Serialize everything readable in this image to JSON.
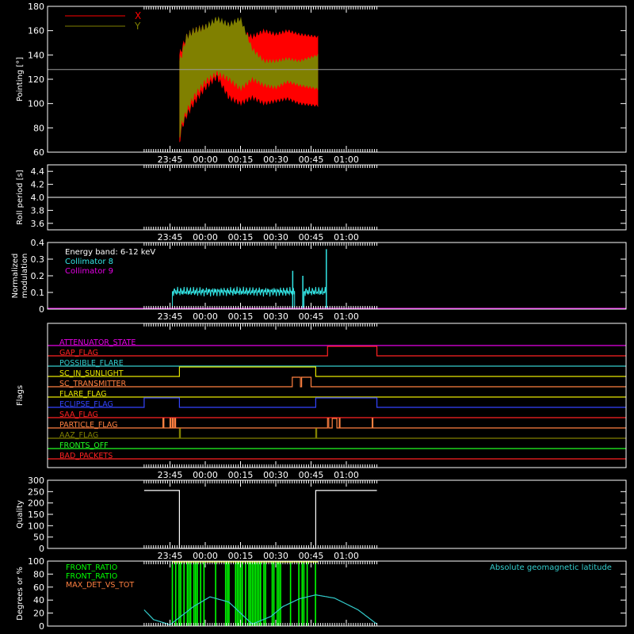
{
  "time_ticks": [
    "23:45",
    "00:00",
    "00:15",
    "00:30",
    "00:45",
    "01:00"
  ],
  "colors": {
    "frame": "#ffffff",
    "x": "#ff0000",
    "y": "#808000",
    "mod": "#33e6e6",
    "col9": "#e600e6",
    "mag": "#33cccc",
    "green": "#00ff00",
    "orange": "#ff8040"
  },
  "chart_data": [
    {
      "type": "area",
      "ylabel": "Pointing [°]",
      "ylim": [
        60,
        180
      ],
      "yticks": [
        "60",
        "80",
        "100",
        "120",
        "140",
        "160",
        "180"
      ],
      "reference_line": 128,
      "legend": [
        "X",
        "Y"
      ],
      "series": [
        {
          "name": "X",
          "x_minutes": [
            -11,
            -10,
            -8,
            -5,
            0,
            5,
            10,
            15,
            20,
            25,
            30,
            35,
            40,
            48
          ],
          "upper": [
            140,
            145,
            155,
            160,
            163,
            165,
            165,
            160,
            155,
            160,
            157,
            160,
            157,
            155
          ],
          "lower": [
            68,
            80,
            90,
            100,
            113,
            122,
            105,
            100,
            105,
            100,
            102,
            104,
            100,
            98
          ]
        },
        {
          "name": "Y",
          "x_minutes": [
            -11,
            -10,
            -8,
            -5,
            0,
            5,
            10,
            15,
            20,
            25,
            30,
            35,
            40,
            48
          ],
          "upper": [
            135,
            140,
            155,
            160,
            163,
            170,
            165,
            170,
            145,
            135,
            135,
            137,
            135,
            140
          ],
          "lower": [
            72,
            83,
            93,
            105,
            118,
            125,
            120,
            112,
            120,
            115,
            113,
            118,
            115,
            112
          ]
        }
      ]
    },
    {
      "type": "line",
      "ylabel": "Roll period [s]",
      "ylim": [
        3.5,
        4.5
      ],
      "yticks": [
        "3.6",
        "3.8",
        "4.0",
        "4.2",
        "4.4"
      ],
      "series": [
        {
          "name": "",
          "value": 4.0
        }
      ]
    },
    {
      "type": "line",
      "ylabel": [
        "Normalized",
        "modulation"
      ],
      "ylim": [
        0,
        0.4
      ],
      "yticks": [
        "0",
        "0.1",
        "0.2",
        "0.3",
        "0.4"
      ],
      "legend": [
        "Energy band: 6-12 keV",
        "Collimator 8",
        "Collimator 9"
      ],
      "series": [
        {
          "name": "Collimator 8",
          "segments": [
            [
              -14,
              38
            ],
            [
              42,
              51.5
            ]
          ],
          "mean": 0.105,
          "spikes": [
            {
              "t": 37.2,
              "v": 0.23
            },
            {
              "t": 41.5,
              "v": 0.2
            },
            {
              "t": 51.5,
              "v": 0.36
            }
          ]
        },
        {
          "name": "Collimator 9",
          "value": 0.0
        }
      ]
    },
    {
      "type": "line",
      "ylabel": "Flags",
      "flags": [
        {
          "name": "ATTENUATOR_STATE",
          "color": "#e600e6",
          "highs": []
        },
        {
          "name": "GAP_FLAG",
          "color": "#ff2222",
          "highs": [
            [
              52,
              73
            ]
          ]
        },
        {
          "name": "POSSIBLE_FLARE",
          "color": "#33cccc",
          "highs": []
        },
        {
          "name": "SC_IN_SUNLIGHT",
          "color": "#e6e600",
          "highs": [
            [
              -11,
              47
            ]
          ]
        },
        {
          "name": "SC_TRANSMITTER",
          "color": "#ff8040",
          "highs": [
            [
              37,
              40.5
            ],
            [
              41,
              45
            ]
          ]
        },
        {
          "name": "FLARE_FLAG",
          "color": "#e6e600",
          "highs": []
        },
        {
          "name": "ECLIPSE_FLAG",
          "color": "#3344ff",
          "highs": [
            [
              -26,
              -11
            ],
            [
              47,
              73
            ]
          ]
        },
        {
          "name": "SAA_FLAG",
          "color": "#ff2222",
          "highs": []
        },
        {
          "name": "PARTICLE_FLAG",
          "color": "#ff8040",
          "highs": [
            [
              -18,
              -17.6
            ],
            [
              -15,
              -14.6
            ],
            [
              -14,
              -13.6
            ],
            [
              -13,
              -12.6
            ],
            [
              52,
              52.5
            ],
            [
              54,
              56
            ],
            [
              57,
              57.3
            ],
            [
              71,
              71.3
            ]
          ]
        },
        {
          "name": "AAZ_FLAG",
          "color": "#808000",
          "highs": [
            [
              -11,
              -10.6
            ],
            [
              47,
              47.4
            ]
          ]
        },
        {
          "name": "FRONTS_OFF",
          "color": "#22ff22",
          "highs": []
        },
        {
          "name": "BAD_PACKETS",
          "color": "#ff2222",
          "highs": []
        }
      ]
    },
    {
      "type": "line",
      "ylabel": "Quality",
      "ylim": [
        0,
        300
      ],
      "yticks": [
        "0",
        "50",
        "100",
        "150",
        "200",
        "250",
        "300"
      ],
      "series": [
        {
          "name": "",
          "x_minutes": [
            -26,
            -11,
            -11,
            47,
            47,
            73
          ],
          "values": [
            255,
            255,
            0,
            0,
            255,
            255
          ]
        }
      ]
    },
    {
      "type": "line",
      "ylabel": "Degrees or %",
      "ylim": [
        0,
        100
      ],
      "yticks": [
        "0",
        "20",
        "40",
        "60",
        "80",
        "100"
      ],
      "legend": [
        "FRONT_RATIO",
        "FRONT_RATIO",
        "MAX_DET_VS_TOT",
        "Absolute geomagnetic latitude"
      ],
      "series": [
        {
          "name": "Absolute geomagnetic latitude",
          "x_minutes": [
            -26,
            -22,
            -15,
            -5,
            2,
            10,
            15,
            20,
            28,
            33,
            40,
            47,
            55,
            65,
            73
          ],
          "values": [
            25,
            10,
            2,
            30,
            45,
            37,
            20,
            3,
            15,
            30,
            42,
            48,
            43,
            25,
            3
          ]
        },
        {
          "name": "FRONT_RATIO",
          "range": [
            -14,
            48
          ],
          "value": 100
        }
      ]
    }
  ]
}
